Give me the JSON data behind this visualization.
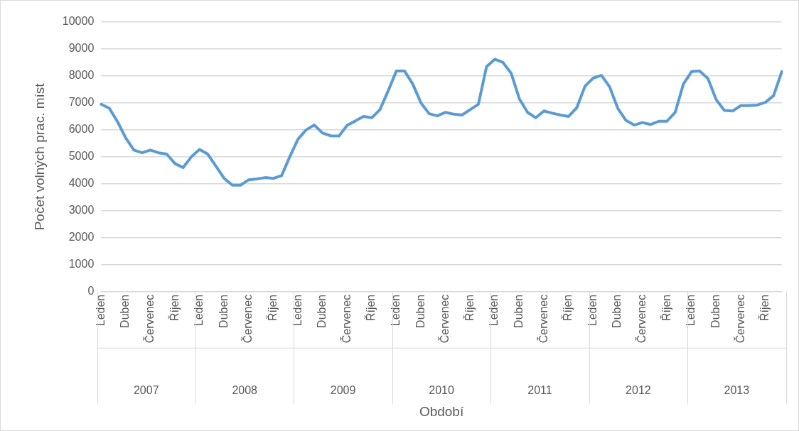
{
  "chart_data": {
    "type": "line",
    "xlabel": "Období",
    "ylabel": "Počet volných prac. míst",
    "categories": [
      "Leden",
      null,
      null,
      "Duben",
      null,
      null,
      "Červenec",
      null,
      null,
      "Říjen",
      null,
      null,
      "Leden",
      null,
      null,
      "Duben",
      null,
      null,
      "Červenec",
      null,
      null,
      "Říjen",
      null,
      null,
      "Leden",
      null,
      null,
      "Duben",
      null,
      null,
      "Červenec",
      null,
      null,
      "Říjen",
      null,
      null,
      "Leden",
      null,
      null,
      "Duben",
      null,
      null,
      "Červenec",
      null,
      null,
      "Říjen",
      null,
      null,
      "Leden",
      null,
      null,
      "Duben",
      null,
      null,
      "Červenec",
      null,
      null,
      "Říjen",
      null,
      null,
      "Leden",
      null,
      null,
      "Duben",
      null,
      null,
      "Červenec",
      null,
      null,
      "Říjen",
      null,
      null,
      "Leden",
      null,
      null,
      "Duben",
      null,
      null,
      "Červenec",
      null,
      null,
      "Říjen",
      null,
      null
    ],
    "series": [
      {
        "color": "#5b9bd5",
        "values": [
          6950,
          6800,
          6300,
          5700,
          5250,
          5150,
          5250,
          5150,
          5100,
          4750,
          4600,
          5000,
          5270,
          5100,
          4650,
          4200,
          3950,
          3950,
          4150,
          4180,
          4230,
          4200,
          4300,
          5000,
          5650,
          6000,
          6180,
          5880,
          5780,
          5770,
          6170,
          6330,
          6500,
          6450,
          6750,
          7450,
          8180,
          8180,
          7700,
          7000,
          6600,
          6520,
          6650,
          6580,
          6550,
          6750,
          6950,
          8350,
          8620,
          8500,
          8100,
          7150,
          6650,
          6450,
          6700,
          6620,
          6550,
          6500,
          6820,
          7620,
          7920,
          8020,
          7600,
          6800,
          6350,
          6180,
          6270,
          6200,
          6320,
          6320,
          6650,
          7700,
          8160,
          8180,
          7900,
          7120,
          6720,
          6700,
          6900,
          6900,
          6920,
          7020,
          7270,
          8160
        ]
      }
    ],
    "annotations": [
      "2007",
      "2008",
      "2009",
      "2010",
      "2011",
      "2012",
      "2013"
    ],
    "ylim": [
      0,
      10000
    ],
    "yticks": [
      0,
      1000,
      2000,
      3000,
      4000,
      5000,
      6000,
      7000,
      8000,
      9000,
      10000
    ],
    "grid": "y",
    "legend": false,
    "marker": "none",
    "line_style": "solid"
  }
}
